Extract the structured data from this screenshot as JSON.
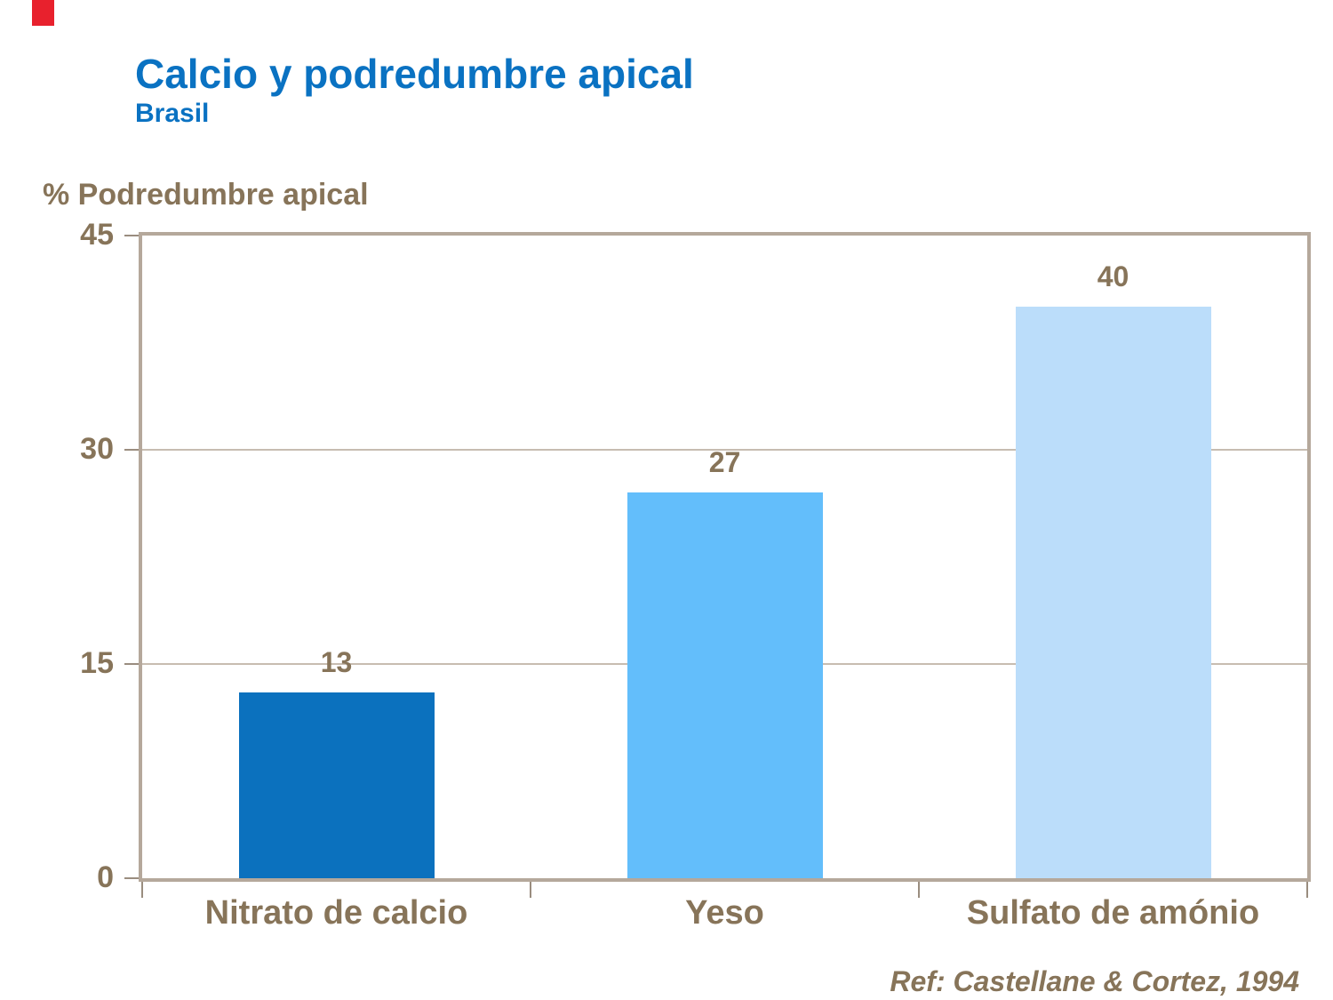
{
  "header": {
    "title": "Calcio y podredumbre apical",
    "subtitle": "Brasil"
  },
  "footer": {
    "reference": "Ref: Castellane & Cortez, 1994"
  },
  "colors": {
    "title_blue": "#0A72C2",
    "label_brown": "#877459",
    "axis_border": "#B5A89B",
    "gridline": "#C7BCB1",
    "tick": "#9A8D7F",
    "corner_red": "#E8212D"
  },
  "chart_data": {
    "type": "bar",
    "title": "Calcio y podredumbre apical",
    "subtitle": "Brasil",
    "ylabel": "% Podredumbre apical",
    "xlabel": "",
    "categories": [
      "Nitrato de calcio",
      "Yeso",
      "Sulfato de amónio"
    ],
    "values": [
      13,
      27,
      40
    ],
    "data_labels": [
      "13",
      "27",
      "40"
    ],
    "ylim": [
      0,
      45
    ],
    "yticks": [
      0,
      15,
      30,
      45
    ],
    "grid": "horizontal-at-15-30",
    "legend": "none",
    "bar_colors": [
      "#0B71BE",
      "#63BEFB",
      "#BBDDFA"
    ],
    "annotation": "Ref: Castellane & Cortez, 1994"
  }
}
